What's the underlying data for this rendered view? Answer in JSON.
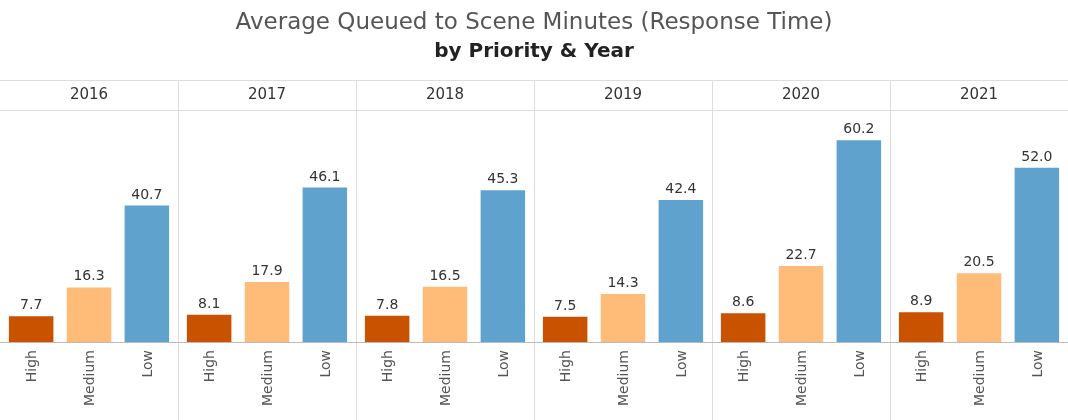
{
  "chart_data": {
    "type": "bar",
    "title": "Average Queued to Scene Minutes (Response Time)",
    "subtitle": "by Priority & Year",
    "categories": [
      "2016",
      "2017",
      "2018",
      "2019",
      "2020",
      "2021"
    ],
    "tick_labels": "x",
    "series": [
      {
        "name": "High",
        "color": "#c85200",
        "values": [
          7.7,
          8.1,
          7.8,
          7.5,
          8.6,
          8.9
        ],
        "value_labels": [
          "7.7",
          "8.1",
          "7.8",
          "7.5",
          "8.6",
          "8.9"
        ]
      },
      {
        "name": "Medium",
        "color": "#ffbc79",
        "values": [
          16.3,
          17.9,
          16.5,
          14.3,
          22.7,
          20.5
        ],
        "value_labels": [
          "16.3",
          "17.9",
          "16.5",
          "14.3",
          "22.7",
          "20.5"
        ]
      },
      {
        "name": "Low",
        "color": "#5fa2ce",
        "values": [
          40.7,
          46.1,
          45.3,
          42.4,
          60.2,
          52.0
        ],
        "value_labels": [
          "40.7",
          "46.1",
          "45.3",
          "42.4",
          "60.2",
          "52.0"
        ]
      }
    ]
  }
}
